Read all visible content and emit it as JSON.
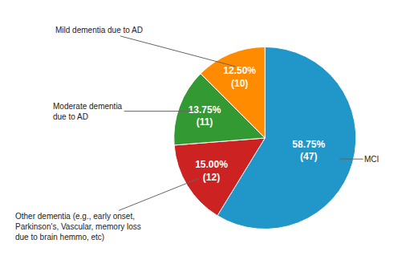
{
  "chart_data": {
    "type": "pie",
    "categories": [
      "MCI",
      "Other dementia (e.g., early onset,\nParkinson's, Vascular, memory loss\ndue to brain hemmo, etc)",
      "Moderate dementia\ndue to AD",
      "Mild dementia due to AD"
    ],
    "values": [
      58.75,
      15.0,
      13.75,
      12.5
    ],
    "value_labels": [
      "58.75%\n(47)",
      "15.00%\n(12)",
      "13.75%\n(11)",
      "12.50%\n(10)"
    ],
    "colors": [
      "#2196C8",
      "#CC2222",
      "#339933",
      "#FF8C00"
    ],
    "data_labels": true
  }
}
